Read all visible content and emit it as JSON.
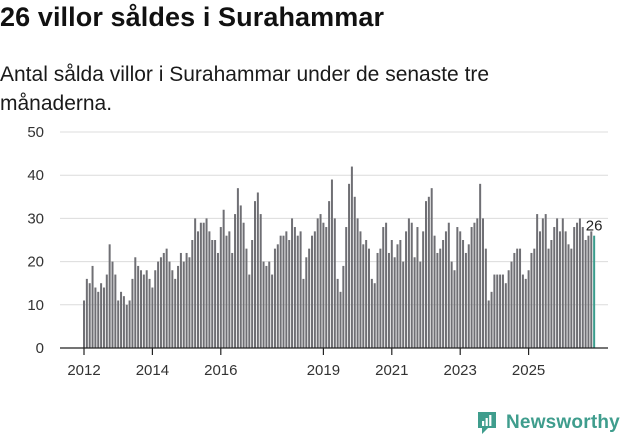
{
  "header": {
    "title": "26 villor såldes i Surahammar",
    "subtitle": "Antal sålda villor i Surahammar under de senaste tre månaderna."
  },
  "brand": {
    "name": "Newsworthy",
    "icon": "newsworthy-logo-icon"
  },
  "colors": {
    "bar": "#6f6f74",
    "highlight": "#3a9c8c",
    "grid": "#dcdcdc",
    "brand": "#3f9d8d"
  },
  "chart_data": {
    "type": "bar",
    "title": "26 villor såldes i Surahammar",
    "xlabel": "",
    "ylabel": "",
    "ylim": [
      0,
      50
    ],
    "yticks": [
      0,
      10,
      20,
      30,
      40,
      50
    ],
    "grid": true,
    "start": "2012-01",
    "xtick_labels": [
      "2012",
      "2014",
      "2016",
      "2019",
      "2021",
      "2023",
      "2025"
    ],
    "xtick_month_index": [
      0,
      24,
      48,
      84,
      108,
      132,
      156
    ],
    "series": [
      {
        "name": "Antal sålda villor (senaste tre månaderna)",
        "values": [
          11,
          16,
          15,
          19,
          14,
          13,
          15,
          14,
          17,
          24,
          20,
          17,
          11,
          13,
          12,
          10,
          11,
          16,
          21,
          19,
          18,
          17,
          18,
          16,
          14,
          18,
          20,
          21,
          22,
          23,
          20,
          18,
          16,
          19,
          22,
          20,
          22,
          21,
          25,
          30,
          27,
          29,
          29,
          30,
          27,
          25,
          25,
          22,
          28,
          32,
          26,
          27,
          22,
          31,
          37,
          33,
          29,
          23,
          17,
          25,
          34,
          36,
          31,
          20,
          19,
          20,
          17,
          23,
          24,
          26,
          26,
          27,
          25,
          30,
          28,
          26,
          27,
          16,
          21,
          23,
          26,
          27,
          30,
          31,
          29,
          28,
          34,
          39,
          30,
          16,
          13,
          19,
          28,
          38,
          42,
          35,
          30,
          27,
          24,
          25,
          23,
          16,
          15,
          22,
          23,
          28,
          29,
          22,
          25,
          21,
          24,
          25,
          20,
          27,
          30,
          29,
          21,
          28,
          20,
          27,
          34,
          35,
          37,
          26,
          22,
          23,
          25,
          27,
          29,
          20,
          18,
          28,
          27,
          25,
          22,
          24,
          28,
          29,
          30,
          38,
          30,
          23,
          11,
          13,
          17,
          17,
          17,
          17,
          15,
          18,
          20,
          22,
          23,
          23,
          17,
          16,
          18,
          22,
          23,
          31,
          27,
          30,
          31,
          23,
          25,
          28,
          30,
          27,
          30,
          27,
          24,
          23,
          28,
          29,
          30,
          28,
          25,
          26,
          27,
          26
        ]
      }
    ],
    "highlight_label": "26"
  }
}
